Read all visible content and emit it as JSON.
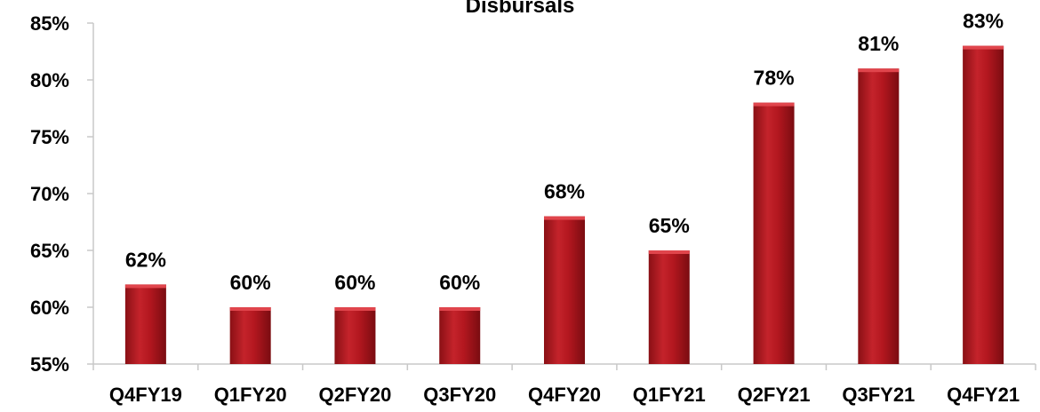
{
  "chart_data": {
    "type": "bar",
    "title": "Disbursals",
    "categories": [
      "Q4FY19",
      "Q1FY20",
      "Q2FY20",
      "Q3FY20",
      "Q4FY20",
      "Q1FY21",
      "Q2FY21",
      "Q3FY21",
      "Q4FY21"
    ],
    "values": [
      62,
      60,
      60,
      60,
      68,
      65,
      78,
      81,
      83
    ],
    "data_labels": [
      "62%",
      "60%",
      "60%",
      "60%",
      "68%",
      "65%",
      "78%",
      "81%",
      "83%"
    ],
    "yticks": [
      55,
      60,
      65,
      70,
      75,
      80,
      85
    ],
    "ytick_labels": [
      "55%",
      "60%",
      "65%",
      "70%",
      "75%",
      "80%",
      "85%"
    ],
    "ylim": [
      55,
      85
    ],
    "xlabel": "",
    "ylabel": "",
    "grid": false,
    "legend": "none",
    "colors": {
      "bar": "#b3171f",
      "bar_light": "#d42a32",
      "bar_dark": "#7e0d12",
      "axis": "#c8c8c8"
    }
  }
}
